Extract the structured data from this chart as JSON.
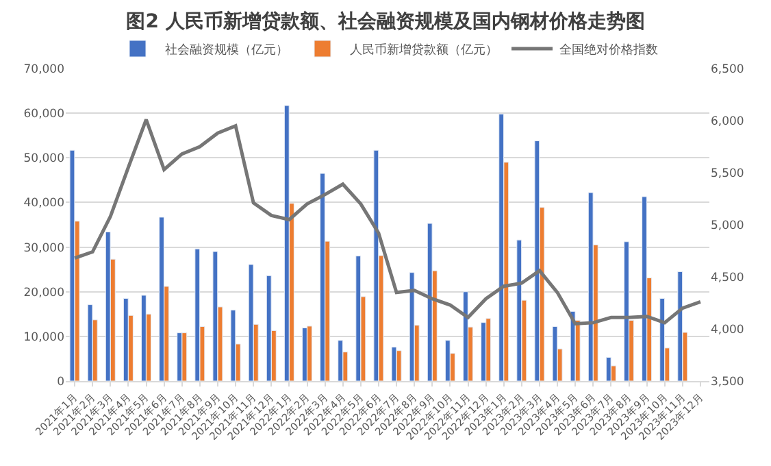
{
  "chart_data": {
    "type": "bar",
    "title": "图2 人民币新增贷款额、社会融资规模及国内钢材价格走势图",
    "categories": [
      "2021年1月",
      "2021年2月",
      "2021年3月",
      "2021年4月",
      "2021年5月",
      "2021年6月",
      "2021年7月",
      "2021年8月",
      "2021年9月",
      "2021年10月",
      "2021年11月",
      "2021年12月",
      "2022年1月",
      "2022年2月",
      "2022年3月",
      "2022年4月",
      "2022年5月",
      "2022年6月",
      "2022年7月",
      "2022年8月",
      "2022年9月",
      "2022年10月",
      "2022年11月",
      "2022年12月",
      "2023年1月",
      "2023年2月",
      "2023年3月",
      "2023年4月",
      "2023年5月",
      "2023年6月",
      "2023年7月",
      "2023年8月",
      "2023年9月",
      "2023年10月",
      "2023年11月",
      "2023年12月"
    ],
    "series": [
      {
        "name": "社会融资规模（亿元）",
        "color": "#4472c4",
        "values": [
          51700,
          17100,
          33400,
          18500,
          19200,
          36700,
          10800,
          29600,
          29000,
          15900,
          26100,
          23600,
          61700,
          11900,
          46500,
          9100,
          28000,
          51700,
          7600,
          24300,
          35300,
          9100,
          20000,
          13100,
          59800,
          31600,
          53800,
          12200,
          15600,
          42200,
          5300,
          31200,
          41300,
          18500,
          24500,
          null
        ]
      },
      {
        "name": "人民币新增贷款额（亿元）",
        "color": "#ed7d31",
        "values": [
          35800,
          13700,
          27300,
          14700,
          15000,
          21200,
          10800,
          12200,
          16600,
          8300,
          12700,
          11300,
          39800,
          12300,
          31300,
          6500,
          18900,
          28100,
          6800,
          12500,
          24700,
          6200,
          12100,
          14000,
          49000,
          18100,
          38900,
          7200,
          13600,
          30500,
          3400,
          13600,
          23100,
          7400,
          10900,
          null
        ]
      },
      {
        "name": "全国绝对价格指数",
        "type": "line",
        "axis": "y2",
        "color": "#767676",
        "values": [
          4680,
          4740,
          5080,
          5550,
          6010,
          5530,
          5680,
          5750,
          5880,
          5950,
          5210,
          5090,
          5050,
          5200,
          5290,
          5390,
          5200,
          4920,
          4350,
          4370,
          4290,
          4230,
          4110,
          4290,
          4410,
          4440,
          4560,
          4350,
          4050,
          4060,
          4110,
          4110,
          4120,
          4060,
          4200,
          4260
        ]
      }
    ],
    "ylim": [
      0,
      70000
    ],
    "yticks": [
      {
        "value": 0,
        "label": "0"
      },
      {
        "value": 10000,
        "label": "10,000"
      },
      {
        "value": 20000,
        "label": "20,000"
      },
      {
        "value": 30000,
        "label": "30,000"
      },
      {
        "value": 40000,
        "label": "40,000"
      },
      {
        "value": 50000,
        "label": "50,000"
      },
      {
        "value": 60000,
        "label": "60,000"
      },
      {
        "value": 70000,
        "label": "70,000"
      }
    ],
    "y2lim": [
      3500,
      6500
    ],
    "y2ticks": [
      {
        "value": 3500,
        "label": "3,500"
      },
      {
        "value": 4000,
        "label": "4,000"
      },
      {
        "value": 4500,
        "label": "4,500"
      },
      {
        "value": 5000,
        "label": "5,000"
      },
      {
        "value": 5500,
        "label": "5,500"
      },
      {
        "value": 6000,
        "label": "6,000"
      },
      {
        "value": 6500,
        "label": "6,500"
      }
    ],
    "grid": "y",
    "legend": "top",
    "marker": "none",
    "line_style": "solid"
  }
}
